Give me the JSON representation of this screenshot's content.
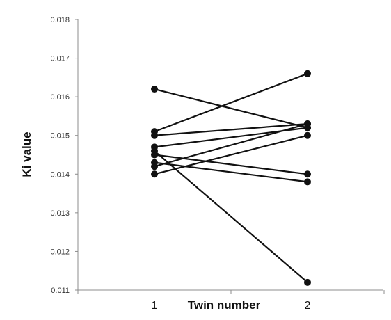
{
  "chart_data": {
    "type": "line",
    "title": "",
    "xlabel": "Twin number",
    "ylabel": "Ki value",
    "x_categories": [
      "1",
      "2"
    ],
    "ylim": [
      0.011,
      0.018
    ],
    "y_ticks": [
      "0.011",
      "0.012",
      "0.013",
      "0.014",
      "0.015",
      "0.016",
      "0.017",
      "0.018"
    ],
    "y_tick_values": [
      0.011,
      0.012,
      0.013,
      0.014,
      0.015,
      0.016,
      0.017,
      0.018
    ],
    "grid": false,
    "legend": "none",
    "series": [
      {
        "values": [
          0.0162,
          0.0152
        ]
      },
      {
        "values": [
          0.0151,
          0.0166
        ]
      },
      {
        "values": [
          0.015,
          0.0153
        ]
      },
      {
        "values": [
          0.0147,
          0.0152
        ]
      },
      {
        "values": [
          0.0145,
          0.014
        ]
      },
      {
        "values": [
          0.0143,
          0.0138
        ]
      },
      {
        "values": [
          0.0142,
          0.0153
        ]
      },
      {
        "values": [
          0.014,
          0.015
        ]
      },
      {
        "values": [
          0.0146,
          0.0112
        ]
      }
    ],
    "colors": {
      "line": "#111111",
      "marker": "#111111",
      "axis": "#8c8c8c"
    }
  }
}
